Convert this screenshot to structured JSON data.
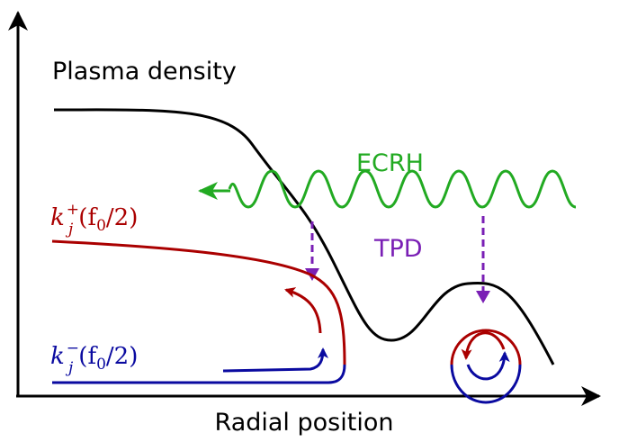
{
  "labels": {
    "density": "Plasma density",
    "ecrh": "ECRH",
    "tpd": "TPD",
    "x_axis": "Radial position",
    "k_plus": {
      "base": "k",
      "sub": "j",
      "sup": "+",
      "arg": "(f",
      "arg_sub": "0",
      "arg_rest": "/2)"
    },
    "k_minus": {
      "base": "k",
      "sub": "j",
      "sup": "−",
      "arg": "(f",
      "arg_sub": "0",
      "arg_rest": "/2)"
    }
  }
}
